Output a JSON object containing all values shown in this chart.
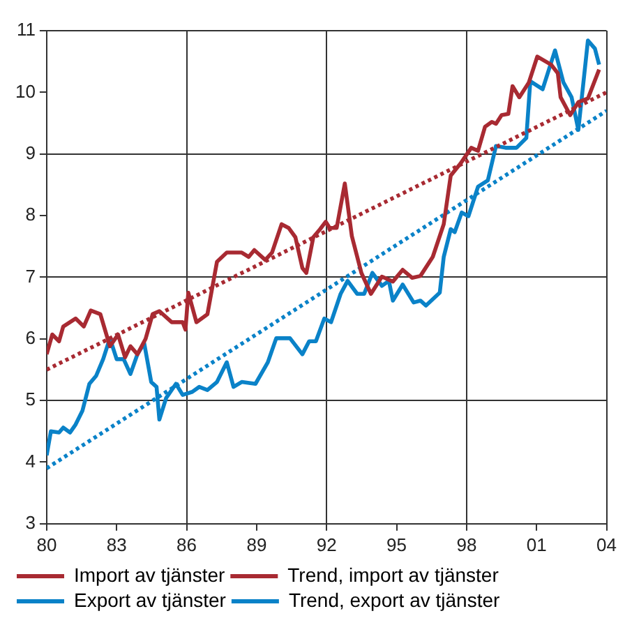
{
  "chart_data": {
    "type": "line",
    "xlim": [
      1980,
      2004
    ],
    "ylim": [
      3,
      11
    ],
    "xticks": [
      {
        "value": 1980,
        "label": "80"
      },
      {
        "value": 1983,
        "label": "83"
      },
      {
        "value": 1986,
        "label": "86"
      },
      {
        "value": 1989,
        "label": "89"
      },
      {
        "value": 1992,
        "label": "92"
      },
      {
        "value": 1995,
        "label": "95"
      },
      {
        "value": 1998,
        "label": "98"
      },
      {
        "value": 2001,
        "label": "01"
      },
      {
        "value": 2004,
        "label": "04"
      }
    ],
    "yticks": [
      3,
      4,
      5,
      6,
      7,
      8,
      9,
      10,
      11
    ],
    "grid": true,
    "legend": "bottom",
    "marker": "none",
    "series": [
      {
        "name": "Import av tjänster",
        "color": "#a82a32",
        "line_style": "solid",
        "x": [
          1980,
          1980.24,
          1980.53,
          1980.71,
          1981.24,
          1981.59,
          1981.89,
          1982.3,
          1982.71,
          1983.06,
          1983.36,
          1983.59,
          1983.89,
          1984.24,
          1984.54,
          1984.83,
          1985.36,
          1985.83,
          1985.95,
          1986.07,
          1986.42,
          1986.89,
          1987.3,
          1987.72,
          1988.36,
          1988.66,
          1988.9,
          1989.37,
          1989.66,
          1990.07,
          1990.37,
          1990.66,
          1990.96,
          1991.13,
          1991.43,
          1991.72,
          1991.96,
          1992.13,
          1992.43,
          1992.78,
          1993.08,
          1993.49,
          1993.9,
          1994.37,
          1994.84,
          1995.26,
          1995.67,
          1996.02,
          1996.55,
          1997.02,
          1997.32,
          1997.73,
          1998.2,
          1998.49,
          1998.79,
          1999.08,
          1999.26,
          1999.5,
          1999.79,
          1999.97,
          2000.26,
          2000.67,
          2001.03,
          2001.62,
          2001.91,
          2002.03,
          2002.44,
          2002.79,
          2003.2,
          2003.68
        ],
        "values": [
          5.75,
          6.07,
          5.96,
          6.2,
          6.33,
          6.2,
          6.46,
          6.4,
          5.88,
          6.07,
          5.7,
          5.88,
          5.75,
          6.0,
          6.4,
          6.45,
          6.27,
          6.27,
          6.15,
          6.75,
          6.27,
          6.4,
          7.25,
          7.4,
          7.4,
          7.33,
          7.44,
          7.28,
          7.4,
          7.86,
          7.8,
          7.65,
          7.15,
          7.07,
          7.65,
          7.78,
          7.9,
          7.8,
          7.8,
          8.52,
          7.67,
          7.07,
          6.73,
          7.01,
          6.93,
          7.12,
          6.99,
          7.02,
          7.33,
          7.86,
          8.65,
          8.84,
          9.1,
          9.05,
          9.44,
          9.52,
          9.49,
          9.63,
          9.65,
          10.1,
          9.92,
          10.16,
          10.58,
          10.45,
          10.31,
          9.92,
          9.63,
          9.84,
          9.9,
          10.37
        ]
      },
      {
        "name": "Trend, import av tjänster",
        "color": "#a82a32",
        "line_style": "dotted",
        "x": [
          1980,
          2004
        ],
        "values": [
          5.5,
          10.0
        ]
      },
      {
        "name": "Export av tjänster",
        "color": "#0a82c8",
        "line_style": "solid",
        "x": [
          1980,
          1980.18,
          1980.53,
          1980.71,
          1981.0,
          1981.24,
          1981.53,
          1981.83,
          1982.12,
          1982.42,
          1982.71,
          1983.0,
          1983.3,
          1983.59,
          1983.89,
          1984.18,
          1984.48,
          1984.71,
          1984.83,
          1985.12,
          1985.54,
          1985.83,
          1986.24,
          1986.54,
          1986.89,
          1987.3,
          1987.72,
          1988.01,
          1988.36,
          1988.95,
          1989.48,
          1989.84,
          1990.43,
          1990.96,
          1991.25,
          1991.54,
          1991.9,
          1992.19,
          1992.6,
          1992.9,
          1993.31,
          1993.61,
          1993.96,
          1994.37,
          1994.67,
          1994.84,
          1995.26,
          1995.73,
          1996.02,
          1996.26,
          1996.85,
          1997.02,
          1997.32,
          1997.49,
          1997.79,
          1998.08,
          1998.49,
          1998.91,
          1999.26,
          1999.67,
          2000.14,
          2000.56,
          2000.73,
          2001.26,
          2001.79,
          2002.15,
          2002.5,
          2002.79,
          2003.2,
          2003.5,
          2003.68
        ],
        "values": [
          4.11,
          4.5,
          4.48,
          4.56,
          4.48,
          4.61,
          4.83,
          5.27,
          5.4,
          5.67,
          6.01,
          5.67,
          5.67,
          5.43,
          5.75,
          5.93,
          5.3,
          5.22,
          4.69,
          5.04,
          5.27,
          5.09,
          5.14,
          5.22,
          5.17,
          5.3,
          5.62,
          5.22,
          5.3,
          5.27,
          5.62,
          6.01,
          6.01,
          5.75,
          5.96,
          5.96,
          6.33,
          6.27,
          6.73,
          6.94,
          6.73,
          6.73,
          7.07,
          6.86,
          6.94,
          6.62,
          6.88,
          6.59,
          6.62,
          6.54,
          6.75,
          7.33,
          7.78,
          7.73,
          8.05,
          7.99,
          8.47,
          8.57,
          9.13,
          9.1,
          9.1,
          9.26,
          10.18,
          10.05,
          10.68,
          10.16,
          9.92,
          9.39,
          10.84,
          10.71,
          10.45
        ]
      },
      {
        "name": "Trend, export av tjänster",
        "color": "#0a82c8",
        "line_style": "dotted",
        "x": [
          1980,
          2004
        ],
        "values": [
          3.9,
          9.7
        ]
      }
    ]
  }
}
